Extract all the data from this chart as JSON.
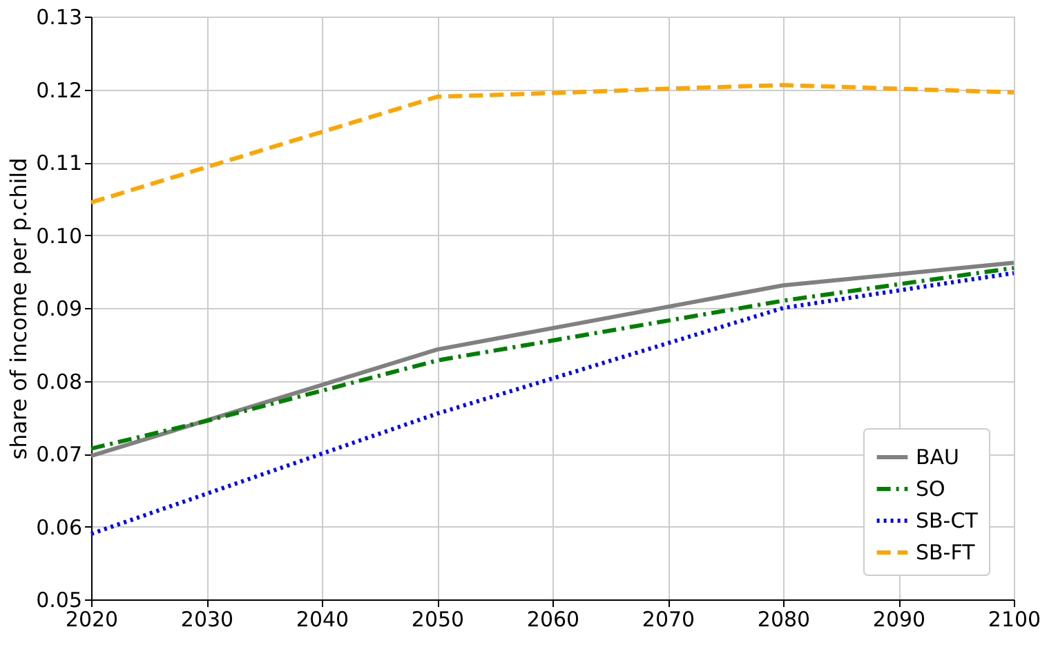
{
  "chart_data": {
    "type": "line",
    "ylabel": "share of income per p.child",
    "xlim": [
      2020,
      2100
    ],
    "xticks": [
      2020,
      2030,
      2040,
      2050,
      2060,
      2070,
      2080,
      2090,
      2100
    ],
    "ylim": [
      0.05,
      0.13
    ],
    "yticks": [
      {
        "value": 0.05,
        "label": "0.05"
      },
      {
        "value": 0.06,
        "label": "0.06"
      },
      {
        "value": 0.07,
        "label": "0.07"
      },
      {
        "value": 0.08,
        "label": "0.08"
      },
      {
        "value": 0.09,
        "label": "0.09"
      },
      {
        "value": 0.1,
        "label": "0.10"
      },
      {
        "value": 0.11,
        "label": "0.11"
      },
      {
        "value": 0.12,
        "label": "0.12"
      },
      {
        "value": 0.13,
        "label": "0.13"
      }
    ],
    "grid": true,
    "legend": "bottom right",
    "marker": "none",
    "series": [
      {
        "name": "BAU",
        "color": "#808080",
        "line_style": "solid",
        "x": [
          2020,
          2050,
          2080,
          2100
        ],
        "values": [
          0.0697,
          0.0843,
          0.0931,
          0.0962
        ]
      },
      {
        "name": "SO",
        "color": "#008000",
        "line_style": "dashdot",
        "x": [
          2020,
          2030,
          2050,
          2080,
          2100
        ],
        "values": [
          0.0707,
          0.0745,
          0.0828,
          0.091,
          0.0955
        ]
      },
      {
        "name": "SB-CT",
        "color": "#0000ff",
        "line_style": "dotted",
        "x": [
          2020,
          2050,
          2080,
          2100
        ],
        "values": [
          0.059,
          0.0755,
          0.09,
          0.0948
        ]
      },
      {
        "name": "SB-FT",
        "color": "#ffa500",
        "line_style": "dashed",
        "x": [
          2020,
          2050,
          2060,
          2070,
          2080,
          2090,
          2100
        ],
        "values": [
          0.1045,
          0.119,
          0.1195,
          0.1201,
          0.1206,
          0.1201,
          0.1196
        ]
      }
    ]
  }
}
